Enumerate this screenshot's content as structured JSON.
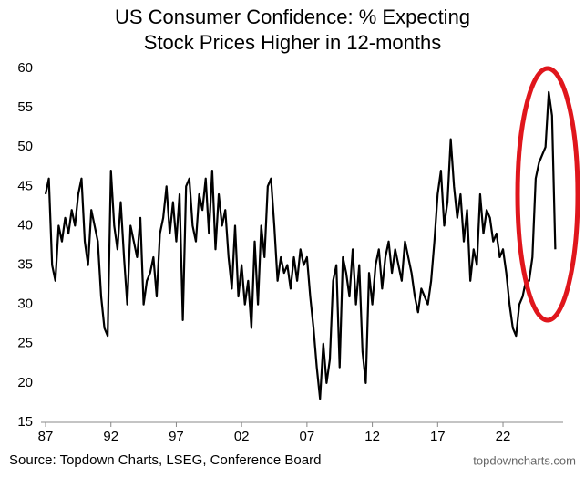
{
  "chart_data": {
    "type": "line",
    "title": "US Consumer Confidence: % Expecting",
    "subtitle": "Stock Prices Higher in 12-months",
    "source": "Source: Topdown Charts, LSEG, Conference Board",
    "watermark": "topdowncharts.com",
    "x": [
      1987,
      1987.25,
      1987.5,
      1987.75,
      1988,
      1988.25,
      1988.5,
      1988.75,
      1989,
      1989.25,
      1989.5,
      1989.75,
      1990,
      1990.25,
      1990.5,
      1990.75,
      1991,
      1991.25,
      1991.5,
      1991.75,
      1992,
      1992.25,
      1992.5,
      1992.75,
      1993,
      1993.25,
      1993.5,
      1993.75,
      1994,
      1994.25,
      1994.5,
      1994.75,
      1995,
      1995.25,
      1995.5,
      1995.75,
      1996,
      1996.25,
      1996.5,
      1996.75,
      1997,
      1997.25,
      1997.5,
      1997.75,
      1998,
      1998.25,
      1998.5,
      1998.75,
      1999,
      1999.25,
      1999.5,
      1999.75,
      2000,
      2000.25,
      2000.5,
      2000.75,
      2001,
      2001.25,
      2001.5,
      2001.75,
      2002,
      2002.25,
      2002.5,
      2002.75,
      2003,
      2003.25,
      2003.5,
      2003.75,
      2004,
      2004.25,
      2004.5,
      2004.75,
      2005,
      2005.25,
      2005.5,
      2005.75,
      2006,
      2006.25,
      2006.5,
      2006.75,
      2007,
      2007.25,
      2007.5,
      2007.75,
      2008,
      2008.25,
      2008.5,
      2008.75,
      2009,
      2009.25,
      2009.5,
      2009.75,
      2010,
      2010.25,
      2010.5,
      2010.75,
      2011,
      2011.25,
      2011.5,
      2011.75,
      2012,
      2012.25,
      2012.5,
      2012.75,
      2013,
      2013.25,
      2013.5,
      2013.75,
      2014,
      2014.25,
      2014.5,
      2014.75,
      2015,
      2015.25,
      2015.5,
      2015.75,
      2016,
      2016.25,
      2016.5,
      2016.75,
      2017,
      2017.25,
      2017.5,
      2017.75,
      2018,
      2018.25,
      2018.5,
      2018.75,
      2019,
      2019.25,
      2019.5,
      2019.75,
      2020,
      2020.25,
      2020.5,
      2020.75,
      2021,
      2021.25,
      2021.5,
      2021.75,
      2022,
      2022.25,
      2022.5,
      2022.75,
      2023,
      2023.25,
      2023.5,
      2023.75,
      2024,
      2024.25,
      2024.5,
      2024.75,
      2025,
      2025.25,
      2025.5,
      2025.75,
      2026
    ],
    "series": [
      {
        "name": "% Expecting Stock Prices Higher",
        "color": "#000000",
        "values": [
          44,
          46,
          35,
          33,
          40,
          38,
          41,
          39,
          42,
          40,
          44,
          46,
          38,
          35,
          42,
          40,
          38,
          31,
          27,
          26,
          47,
          40,
          37,
          43,
          36,
          30,
          40,
          38,
          36,
          41,
          30,
          33,
          34,
          36,
          31,
          39,
          41,
          45,
          39,
          43,
          38,
          44,
          28,
          45,
          46,
          40,
          38,
          44,
          42,
          46,
          39,
          47,
          37,
          44,
          40,
          42,
          36,
          32,
          40,
          31,
          35,
          30,
          33,
          27,
          38,
          30,
          40,
          36,
          45,
          46,
          40,
          33,
          36,
          34,
          35,
          32,
          36,
          33,
          37,
          35,
          36,
          31,
          27,
          22,
          18,
          25,
          20,
          23,
          33,
          35,
          22,
          36,
          34,
          31,
          37,
          30,
          35,
          24,
          20,
          34,
          30,
          35,
          37,
          32,
          36,
          38,
          34,
          37,
          35,
          33,
          38,
          36,
          34,
          31,
          29,
          32,
          31,
          30,
          33,
          38,
          44,
          47,
          40,
          43,
          51,
          45,
          41,
          44,
          38,
          42,
          33,
          37,
          35,
          44,
          39,
          42,
          41,
          38,
          39,
          36,
          37,
          34,
          30,
          27,
          26,
          30,
          31,
          33,
          33,
          36,
          46,
          48,
          49,
          50,
          57,
          54,
          37
        ]
      }
    ],
    "xlim": [
      1986.65,
      2026.6
    ],
    "xticks": [
      {
        "value": 1987,
        "label": "87"
      },
      {
        "value": 1992,
        "label": "92"
      },
      {
        "value": 1997,
        "label": "97"
      },
      {
        "value": 2002,
        "label": "02"
      },
      {
        "value": 2007,
        "label": "07"
      },
      {
        "value": 2012,
        "label": "12"
      },
      {
        "value": 2017,
        "label": "17"
      },
      {
        "value": 2022,
        "label": "22"
      }
    ],
    "ylim": [
      15,
      60
    ],
    "yticks": [
      15,
      20,
      25,
      30,
      35,
      40,
      45,
      50,
      55,
      60
    ],
    "grid": false
  }
}
